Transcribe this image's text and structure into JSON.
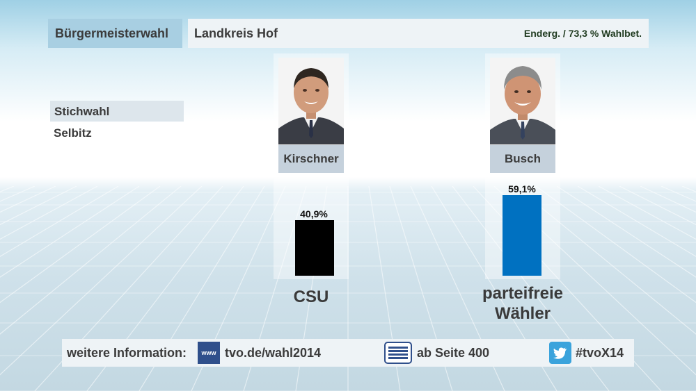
{
  "header": {
    "title": "Bürgermeisterwahl",
    "region": "Landkreis Hof",
    "status": "Enderg. / 73,3 % Wahlbet."
  },
  "subheader": {
    "round": "Stichwahl",
    "municipality": "Selbitz"
  },
  "colors": {
    "title_bg": "#a8cfe2",
    "kirschner_bar": "#000000",
    "busch_bar": "#0071c1",
    "name_box": "#c5d1dc"
  },
  "chart_data": {
    "type": "bar",
    "categories": [
      "Kirschner",
      "Busch"
    ],
    "values": [
      40.9,
      59.1
    ],
    "value_labels": [
      "40,9%",
      "59,1%"
    ],
    "parties": [
      "CSU",
      "parteifreie Wähler"
    ],
    "unit": "%",
    "ylim": [
      0,
      59.1
    ],
    "colors": [
      "#000000",
      "#0071c1"
    ],
    "grid": false,
    "title": ""
  },
  "candidates": [
    {
      "name": "Kirschner",
      "pct_label": "40,9%",
      "party_line1": "CSU",
      "party_line2": "",
      "photo_icon": "candidate-portrait"
    },
    {
      "name": "Busch",
      "pct_label": "59,1%",
      "party_line1": "parteifreie",
      "party_line2": "Wähler",
      "photo_icon": "candidate-portrait"
    }
  ],
  "footer": {
    "label": "weitere Information:",
    "web_icon_text": "www",
    "website": "tvo.de/wahl2014",
    "teletext": "ab Seite 400",
    "hashtag": "#tvoX14",
    "icons": [
      "www-icon",
      "teletext-icon",
      "twitter-icon"
    ]
  }
}
